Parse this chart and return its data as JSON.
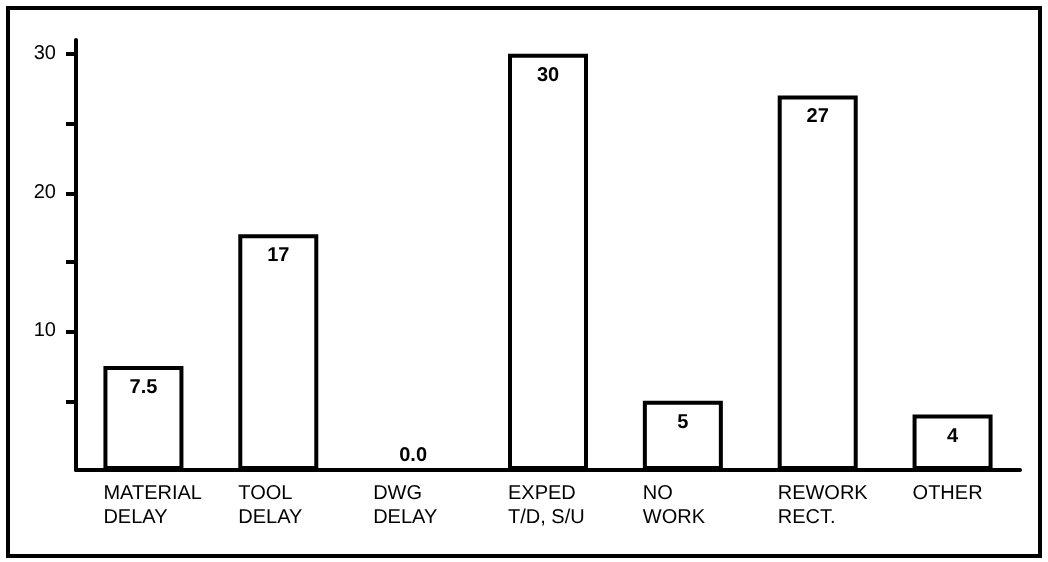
{
  "chart_data": {
    "type": "bar",
    "categories": [
      "MATERIAL\nDELAY",
      "TOOL\nDELAY",
      "DWG\nDELAY",
      "EXPED\nT/D, S/U",
      "NO\nWORK",
      "REWORK\nRECT.",
      "OTHER"
    ],
    "values": [
      7.5,
      17,
      0,
      30,
      5,
      27,
      4
    ],
    "value_labels": [
      "7.5",
      "17",
      "0.0",
      "30",
      "5",
      "27",
      "4"
    ],
    "color": "#ffffff",
    "ylim": [
      0,
      31
    ],
    "yticks": [
      {
        "value": 5,
        "label": null
      },
      10,
      {
        "value": 15,
        "label": null
      },
      20,
      {
        "value": 25,
        "label": null
      },
      30
    ],
    "grid": false
  }
}
